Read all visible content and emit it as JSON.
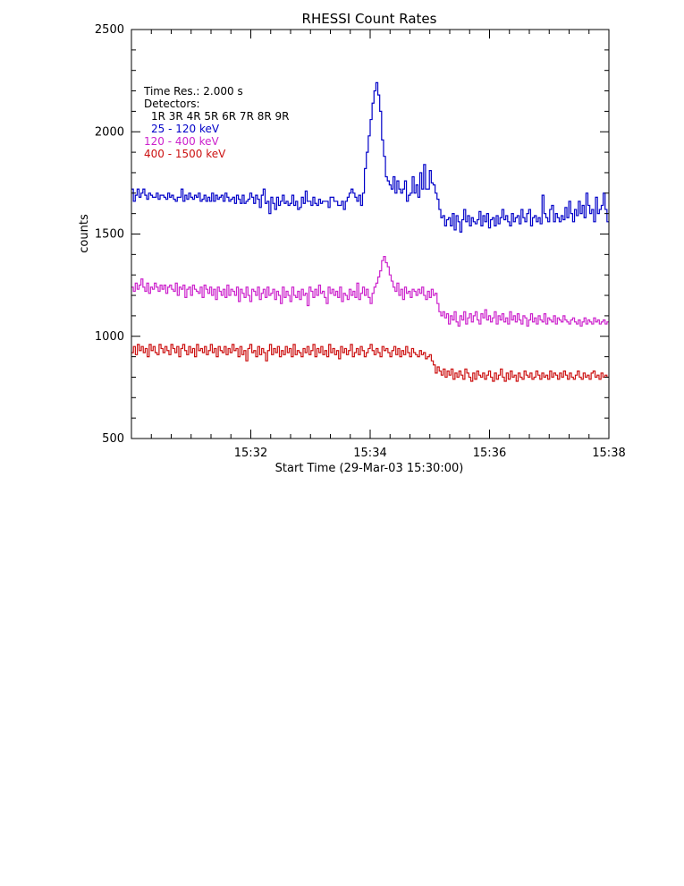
{
  "chart_data": {
    "type": "line",
    "step": true,
    "title": "RHESSI Count Rates",
    "xlabel": "Start Time (29-Mar-03 15:30:00)",
    "ylabel": "counts",
    "xlim": [
      "15:30:00",
      "15:38:00"
    ],
    "ylim": [
      500,
      2500
    ],
    "yticks": [
      "500",
      "1000",
      "1500",
      "2000",
      "2500"
    ],
    "xticks": [
      "15:32",
      "15:34",
      "15:36",
      "15:38"
    ],
    "legend": {
      "placement": "top-left",
      "lines": [
        "Time Res.: 2.000 s",
        "Detectors:",
        "1R 3R 4R 5R 6R 7R 8R 9R"
      ]
    },
    "colors": {
      "frame": "#000000",
      "blue": "#0000c8",
      "magenta": "#cc22cc",
      "red": "#cc1111"
    },
    "series": [
      {
        "name": "25 - 120 keV",
        "color": "#0000c8",
        "x_start": "15:30:00",
        "x_end": "15:38:00",
        "values": [
          1720,
          1660,
          1690,
          1720,
          1680,
          1700,
          1720,
          1690,
          1670,
          1700,
          1690,
          1680,
          1680,
          1700,
          1670,
          1690,
          1690,
          1680,
          1670,
          1700,
          1680,
          1690,
          1670,
          1660,
          1680,
          1680,
          1720,
          1660,
          1690,
          1670,
          1700,
          1680,
          1670,
          1690,
          1680,
          1700,
          1660,
          1670,
          1690,
          1660,
          1680,
          1660,
          1700,
          1660,
          1690,
          1670,
          1680,
          1690,
          1660,
          1700,
          1680,
          1660,
          1670,
          1680,
          1650,
          1690,
          1670,
          1650,
          1690,
          1650,
          1660,
          1670,
          1700,
          1680,
          1650,
          1690,
          1670,
          1630,
          1690,
          1720,
          1650,
          1660,
          1600,
          1680,
          1650,
          1620,
          1680,
          1640,
          1660,
          1690,
          1650,
          1660,
          1640,
          1650,
          1690,
          1640,
          1660,
          1620,
          1630,
          1680,
          1650,
          1710,
          1660,
          1660,
          1640,
          1680,
          1650,
          1640,
          1670,
          1650,
          1660,
          1660,
          1660,
          1630,
          1680,
          1680,
          1660,
          1660,
          1640,
          1640,
          1660,
          1620,
          1660,
          1680,
          1700,
          1720,
          1700,
          1680,
          1660,
          1690,
          1640,
          1700,
          1820,
          1900,
          1980,
          2060,
          2140,
          2200,
          2240,
          2180,
          2100,
          1960,
          1880,
          1780,
          1760,
          1740,
          1720,
          1780,
          1700,
          1760,
          1720,
          1700,
          1720,
          1760,
          1660,
          1690,
          1700,
          1780,
          1700,
          1740,
          1680,
          1800,
          1720,
          1840,
          1720,
          1720,
          1810,
          1750,
          1740,
          1700,
          1670,
          1620,
          1580,
          1590,
          1540,
          1570,
          1580,
          1540,
          1600,
          1520,
          1590,
          1560,
          1510,
          1570,
          1620,
          1560,
          1590,
          1540,
          1580,
          1560,
          1550,
          1570,
          1610,
          1540,
          1590,
          1560,
          1600,
          1530,
          1570,
          1580,
          1540,
          1590,
          1550,
          1580,
          1620,
          1570,
          1590,
          1560,
          1540,
          1600,
          1560,
          1580,
          1590,
          1550,
          1620,
          1580,
          1560,
          1600,
          1620,
          1540,
          1580,
          1590,
          1560,
          1580,
          1550,
          1690,
          1600,
          1580,
          1560,
          1620,
          1640,
          1560,
          1600,
          1580,
          1560,
          1590,
          1570,
          1630,
          1580,
          1660,
          1600,
          1560,
          1620,
          1590,
          1660,
          1600,
          1640,
          1580,
          1700,
          1640,
          1600,
          1620,
          1560,
          1680,
          1600,
          1620,
          1640,
          1700,
          1620,
          1560
        ]
      },
      {
        "name": "120 - 400 keV",
        "color": "#cc22cc",
        "x_start": "15:30:00",
        "x_end": "15:38:00",
        "values": [
          1240,
          1220,
          1260,
          1230,
          1250,
          1280,
          1240,
          1220,
          1260,
          1210,
          1240,
          1230,
          1260,
          1240,
          1220,
          1250,
          1230,
          1250,
          1210,
          1240,
          1250,
          1230,
          1220,
          1260,
          1200,
          1240,
          1230,
          1250,
          1190,
          1230,
          1240,
          1200,
          1250,
          1230,
          1220,
          1210,
          1240,
          1190,
          1250,
          1230,
          1210,
          1240,
          1200,
          1230,
          1180,
          1240,
          1220,
          1200,
          1230,
          1190,
          1250,
          1200,
          1230,
          1220,
          1200,
          1240,
          1170,
          1230,
          1210,
          1190,
          1240,
          1200,
          1170,
          1230,
          1220,
          1200,
          1240,
          1180,
          1210,
          1230,
          1190,
          1240,
          1200,
          1210,
          1230,
          1180,
          1220,
          1200,
          1160,
          1240,
          1190,
          1220,
          1200,
          1170,
          1240,
          1200,
          1190,
          1220,
          1180,
          1230,
          1200,
          1210,
          1150,
          1240,
          1220,
          1190,
          1230,
          1200,
          1250,
          1210,
          1220,
          1190,
          1160,
          1240,
          1210,
          1230,
          1200,
          1220,
          1190,
          1240,
          1170,
          1210,
          1200,
          1180,
          1230,
          1200,
          1220,
          1190,
          1260,
          1180,
          1210,
          1240,
          1200,
          1230,
          1190,
          1160,
          1210,
          1240,
          1260,
          1290,
          1320,
          1370,
          1390,
          1360,
          1340,
          1300,
          1270,
          1240,
          1220,
          1260,
          1200,
          1230,
          1180,
          1240,
          1210,
          1220,
          1190,
          1230,
          1220,
          1200,
          1230,
          1210,
          1240,
          1200,
          1180,
          1220,
          1190,
          1230,
          1200,
          1210,
          1160,
          1120,
          1100,
          1120,
          1090,
          1110,
          1060,
          1100,
          1080,
          1120,
          1070,
          1050,
          1100,
          1080,
          1120,
          1060,
          1090,
          1110,
          1070,
          1100,
          1120,
          1080,
          1060,
          1110,
          1090,
          1130,
          1080,
          1100,
          1070,
          1090,
          1120,
          1060,
          1100,
          1080,
          1110,
          1070,
          1090,
          1060,
          1120,
          1080,
          1100,
          1070,
          1110,
          1080,
          1060,
          1100,
          1090,
          1050,
          1080,
          1110,
          1070,
          1090,
          1060,
          1100,
          1080,
          1070,
          1110,
          1060,
          1090,
          1080,
          1070,
          1100,
          1060,
          1090,
          1080,
          1070,
          1100,
          1080,
          1070,
          1060,
          1080,
          1090,
          1070,
          1060,
          1080,
          1050,
          1070,
          1090,
          1060,
          1080,
          1070,
          1060,
          1090,
          1070,
          1080,
          1060,
          1070,
          1080,
          1060,
          1070
        ]
      },
      {
        "name": "400 - 1500 keV",
        "color": "#cc1111",
        "x_start": "15:30:00",
        "x_end": "15:38:00",
        "values": [
          920,
          950,
          910,
          960,
          930,
          950,
          920,
          940,
          900,
          960,
          930,
          950,
          920,
          910,
          960,
          940,
          920,
          950,
          930,
          910,
          960,
          940,
          920,
          950,
          900,
          940,
          960,
          930,
          910,
          950,
          920,
          940,
          900,
          960,
          930,
          940,
          920,
          950,
          910,
          930,
          960,
          920,
          940,
          900,
          950,
          930,
          920,
          950,
          910,
          940,
          920,
          960,
          930,
          940,
          900,
          950,
          910,
          930,
          880,
          940,
          960,
          920,
          930,
          900,
          950,
          910,
          940,
          920,
          880,
          930,
          960,
          910,
          940,
          920,
          950,
          900,
          930,
          910,
          950,
          920,
          940,
          900,
          960,
          910,
          930,
          920,
          900,
          940,
          920,
          950,
          910,
          930,
          960,
          900,
          940,
          920,
          950,
          910,
          930,
          900,
          960,
          920,
          940,
          910,
          930,
          890,
          950,
          920,
          940,
          910,
          930,
          960,
          900,
          920,
          940,
          910,
          950,
          930,
          900,
          920,
          940,
          960,
          930,
          910,
          940,
          920,
          900,
          950,
          930,
          940,
          920,
          900,
          930,
          950,
          910,
          940,
          900,
          930,
          910,
          950,
          920,
          900,
          940,
          920,
          910,
          900,
          930,
          910,
          920,
          890,
          900,
          910,
          880,
          860,
          820,
          850,
          830,
          810,
          840,
          800,
          830,
          810,
          840,
          790,
          820,
          800,
          830,
          810,
          790,
          840,
          820,
          800,
          780,
          820,
          790,
          830,
          810,
          800,
          820,
          790,
          810,
          830,
          800,
          780,
          820,
          790,
          810,
          840,
          800,
          780,
          820,
          790,
          830,
          800,
          810,
          780,
          820,
          800,
          790,
          830,
          810,
          800,
          820,
          790,
          800,
          830,
          810,
          790,
          820,
          800,
          810,
          790,
          830,
          800,
          820,
          810,
          790,
          820,
          800,
          830,
          810,
          790,
          820,
          800,
          790,
          810,
          830,
          800,
          790,
          820,
          800,
          810,
          790,
          820,
          830,
          800,
          810,
          790,
          820,
          800,
          810,
          800
        ]
      }
    ]
  }
}
